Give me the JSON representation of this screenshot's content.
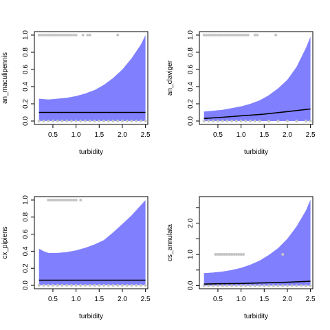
{
  "colors": {
    "band": "#8080ff",
    "point": "#c4c4c4",
    "line": "#000000",
    "axis": "#000000"
  },
  "chart_data": [
    {
      "type": "line",
      "xlabel": "turbidity",
      "ylabel": "an_maculipennis",
      "xlim": [
        0.1,
        2.55
      ],
      "ylim": [
        -0.04,
        1.04
      ],
      "xticks": [
        "0.5",
        "1.0",
        "1.5",
        "2.0",
        "2.5"
      ],
      "yticks": [
        "0.0",
        "0.2",
        "0.4",
        "0.6",
        "0.8",
        "1.0"
      ],
      "xtick_values": [
        0.5,
        1.0,
        1.5,
        2.0,
        2.5
      ],
      "ytick_values": [
        0.0,
        0.2,
        0.4,
        0.6,
        0.8,
        1.0
      ],
      "fit": {
        "x": [
          0.2,
          0.5,
          1.0,
          1.5,
          2.0,
          2.5
        ],
        "y": [
          0.1,
          0.1,
          0.1,
          0.1,
          0.1,
          0.1
        ]
      },
      "band": {
        "x": [
          0.2,
          0.4,
          0.6,
          0.8,
          1.0,
          1.2,
          1.4,
          1.6,
          1.8,
          2.0,
          2.2,
          2.4,
          2.5
        ],
        "upper": [
          0.26,
          0.25,
          0.26,
          0.27,
          0.29,
          0.32,
          0.36,
          0.42,
          0.5,
          0.6,
          0.73,
          0.89,
          1.0
        ],
        "lower": [
          0.0,
          0.0,
          0.0,
          0.0,
          0.0,
          0.0,
          0.0,
          0.0,
          0.0,
          0.0,
          0.0,
          0.0,
          0.0
        ]
      },
      "points_y1": [
        0.2,
        0.25,
        0.3,
        0.35,
        0.4,
        0.45,
        0.5,
        0.55,
        0.6,
        0.65,
        0.7,
        0.75,
        0.8,
        0.85,
        0.9,
        0.95,
        1.0,
        1.15,
        1.25,
        1.3,
        1.9
      ],
      "points_y0": [
        0.2,
        0.3,
        0.4,
        0.5,
        0.6,
        0.7,
        0.8,
        0.9,
        1.0,
        1.1,
        1.2,
        1.3,
        1.4,
        1.5,
        1.6,
        1.7,
        1.8,
        1.9,
        2.0,
        2.1,
        2.2,
        2.3,
        2.4,
        2.5
      ]
    },
    {
      "type": "line",
      "xlabel": "turbidity",
      "ylabel": "an_claviger",
      "xlim": [
        0.1,
        2.55
      ],
      "ylim": [
        -0.04,
        1.04
      ],
      "xticks": [
        "0.5",
        "1.0",
        "1.5",
        "2.0",
        "2.5"
      ],
      "yticks": [
        "0.0",
        "0.2",
        "0.4",
        "0.6",
        "0.8",
        "1.0"
      ],
      "xtick_values": [
        0.5,
        1.0,
        1.5,
        2.0,
        2.5
      ],
      "ytick_values": [
        0.0,
        0.2,
        0.4,
        0.6,
        0.8,
        1.0
      ],
      "fit": {
        "x": [
          0.2,
          0.5,
          1.0,
          1.5,
          2.0,
          2.5
        ],
        "y": [
          0.03,
          0.04,
          0.06,
          0.08,
          0.11,
          0.14
        ]
      },
      "band": {
        "x": [
          0.2,
          0.4,
          0.6,
          0.8,
          1.0,
          1.2,
          1.4,
          1.6,
          1.8,
          2.0,
          2.2,
          2.4,
          2.5
        ],
        "upper": [
          0.11,
          0.12,
          0.13,
          0.15,
          0.17,
          0.2,
          0.24,
          0.3,
          0.38,
          0.48,
          0.63,
          0.85,
          0.98
        ],
        "lower": [
          0.0,
          0.0,
          0.0,
          0.0,
          0.0,
          0.0,
          0.0,
          0.0,
          0.0,
          0.0,
          0.0,
          0.0,
          0.0
        ]
      },
      "points_y1": [
        0.2,
        0.25,
        0.3,
        0.35,
        0.4,
        0.45,
        0.5,
        0.55,
        0.6,
        0.65,
        0.7,
        0.75,
        0.8,
        0.85,
        0.9,
        0.95,
        1.0,
        1.05,
        1.1,
        1.15,
        1.3,
        1.35,
        1.75
      ],
      "points_y0": [
        0.2,
        0.3,
        0.4,
        0.5,
        0.6,
        0.7,
        0.8,
        0.9,
        1.0,
        1.1,
        1.2,
        1.3,
        1.4,
        1.6,
        1.8,
        2.0,
        2.2,
        2.4,
        2.5
      ]
    },
    {
      "type": "line",
      "xlabel": "turbidity",
      "ylabel": "cx_pipiens",
      "xlim": [
        0.1,
        2.55
      ],
      "ylim": [
        -0.04,
        1.04
      ],
      "xticks": [
        "0.5",
        "1.0",
        "1.5",
        "2.0",
        "2.5"
      ],
      "yticks": [
        "0.0",
        "0.2",
        "0.4",
        "0.6",
        "0.8",
        "1.0"
      ],
      "xtick_values": [
        0.5,
        1.0,
        1.5,
        2.0,
        2.5
      ],
      "ytick_values": [
        0.0,
        0.2,
        0.4,
        0.6,
        0.8,
        1.0
      ],
      "fit": {
        "x": [
          0.2,
          0.5,
          1.0,
          1.5,
          2.0,
          2.5
        ],
        "y": [
          0.06,
          0.06,
          0.06,
          0.06,
          0.06,
          0.06
        ]
      },
      "band": {
        "x": [
          0.2,
          0.3,
          0.4,
          0.6,
          0.8,
          1.0,
          1.2,
          1.4,
          1.6,
          1.8,
          2.0,
          2.2,
          2.4,
          2.5
        ],
        "upper": [
          0.43,
          0.4,
          0.38,
          0.38,
          0.39,
          0.41,
          0.44,
          0.48,
          0.53,
          0.62,
          0.72,
          0.82,
          0.94,
          1.0
        ],
        "lower": [
          0.0,
          0.0,
          0.0,
          0.0,
          0.0,
          0.0,
          0.0,
          0.0,
          0.0,
          0.0,
          0.0,
          0.0,
          0.0,
          0.0
        ]
      },
      "points_y1": [
        0.4,
        0.45,
        0.5,
        0.55,
        0.6,
        0.65,
        0.7,
        0.75,
        0.8,
        0.85,
        0.9,
        0.95,
        1.0,
        1.1
      ],
      "points_y0": [
        0.2,
        0.3,
        0.4,
        0.5,
        0.6,
        0.7,
        0.8,
        0.9,
        1.0,
        1.1,
        1.2,
        1.3,
        1.4,
        1.5,
        1.6,
        1.7,
        1.8,
        1.9,
        2.0,
        2.1,
        2.2,
        2.3,
        2.4,
        2.5
      ]
    },
    {
      "type": "line",
      "xlabel": "turbidity",
      "ylabel": "cs_annulata",
      "xlim": [
        0.1,
        2.55
      ],
      "ylim": [
        -0.1,
        2.85
      ],
      "xticks": [
        "0.5",
        "1.0",
        "1.5",
        "2.0",
        "2.5"
      ],
      "yticks": [
        "0.0",
        "1.0",
        "2.0"
      ],
      "ytick_minor": [
        0.5,
        1.5,
        2.5
      ],
      "xtick_values": [
        0.5,
        1.0,
        1.5,
        2.0,
        2.5
      ],
      "ytick_values": [
        0.0,
        1.0,
        2.0
      ],
      "fit": {
        "x": [
          0.2,
          0.5,
          1.0,
          1.5,
          2.0,
          2.5
        ],
        "y": [
          0.05,
          0.06,
          0.07,
          0.09,
          0.11,
          0.14
        ]
      },
      "band": {
        "x": [
          0.2,
          0.4,
          0.6,
          0.8,
          1.0,
          1.2,
          1.4,
          1.6,
          1.8,
          2.0,
          2.2,
          2.4,
          2.5
        ],
        "upper": [
          0.4,
          0.42,
          0.45,
          0.5,
          0.57,
          0.67,
          0.8,
          0.98,
          1.2,
          1.5,
          1.9,
          2.4,
          2.75
        ],
        "lower": [
          0.0,
          0.0,
          0.0,
          0.0,
          0.0,
          0.0,
          0.0,
          0.0,
          0.0,
          0.0,
          0.0,
          0.0,
          0.0
        ]
      },
      "points_y1": [
        0.45,
        0.5,
        0.55,
        0.6,
        0.65,
        0.7,
        0.75,
        0.8,
        0.85,
        0.9,
        0.95,
        1.0,
        1.05,
        1.9
      ],
      "points_y0": [
        0.2,
        0.3,
        0.4,
        0.5,
        0.6,
        0.7,
        0.8,
        0.9,
        1.0,
        1.1,
        1.2,
        1.3,
        1.4,
        1.5,
        1.6,
        1.7,
        1.8,
        1.9,
        2.0,
        2.1,
        2.2,
        2.3,
        2.4,
        2.5
      ]
    }
  ]
}
